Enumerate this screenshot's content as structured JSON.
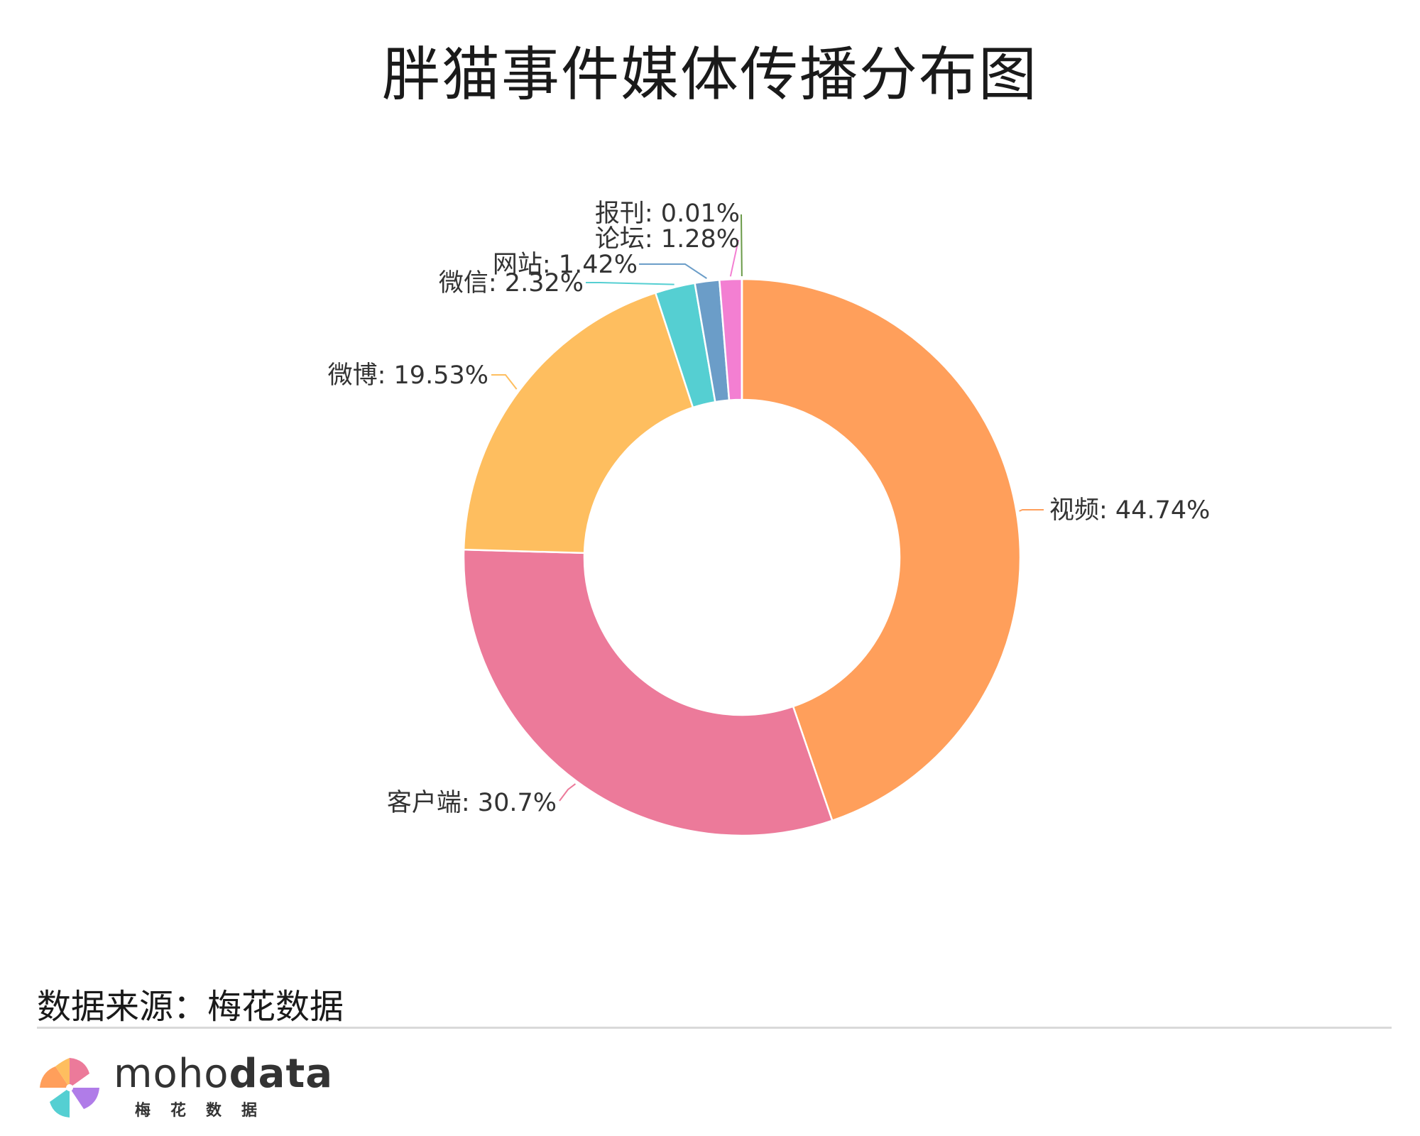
{
  "title": "胖猫事件媒体传播分布图",
  "source": "数据来源：梅花数据",
  "brand": {
    "name_light": "moho",
    "name_bold": "data",
    "subtitle": "梅花数据"
  },
  "chart_data": {
    "type": "pie",
    "style": "donut",
    "slices": [
      {
        "label": "视频",
        "value": 44.74,
        "display": "44.74%",
        "color": "#FF9F5B"
      },
      {
        "label": "客户端",
        "value": 30.7,
        "display": "30.7%",
        "color": "#EC7A9A"
      },
      {
        "label": "微博",
        "value": 19.53,
        "display": "19.53%",
        "color": "#FEBE5F"
      },
      {
        "label": "微信",
        "value": 2.32,
        "display": "2.32%",
        "color": "#55CFD2"
      },
      {
        "label": "网站",
        "value": 1.42,
        "display": "1.42%",
        "color": "#6B9DC8"
      },
      {
        "label": "论坛",
        "value": 1.28,
        "display": "1.28%",
        "color": "#F37FD2"
      },
      {
        "label": "报刊",
        "value": 0.01,
        "display": "0.01%",
        "color": "#6A9A48"
      }
    ]
  }
}
